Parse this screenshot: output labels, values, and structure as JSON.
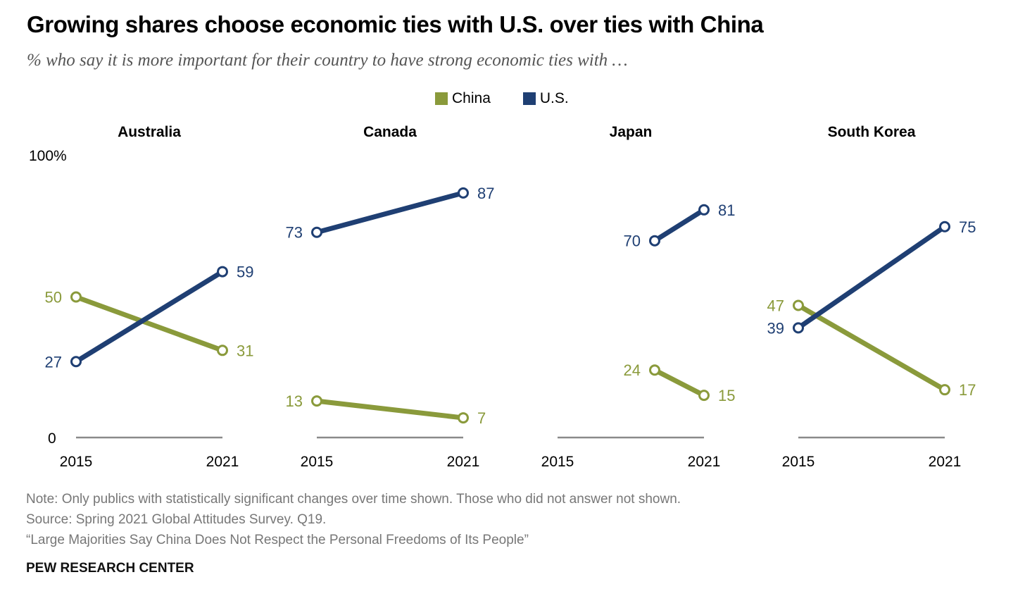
{
  "title": "Growing shares choose economic ties with U.S. over ties with China",
  "subtitle": "% who say it is more important for their country to have strong economic ties with …",
  "legend": [
    {
      "label": "China",
      "color": "#8a9a3b"
    },
    {
      "label": "U.S.",
      "color": "#1f3f73"
    }
  ],
  "colors": {
    "china": "#8a9a3b",
    "us": "#1f3f73",
    "baseline": "#8a8a8a"
  },
  "chart_data": {
    "type": "line",
    "ylim": [
      0,
      100
    ],
    "y_ticks": [
      "100%",
      "0"
    ],
    "legend_position": "top-center",
    "grid": false,
    "panels": [
      {
        "name": "Australia",
        "x_ticks": [
          "2015",
          "2021"
        ],
        "series": [
          {
            "name": "China",
            "values": [
              50,
              31
            ],
            "labels": [
              "50",
              "31"
            ]
          },
          {
            "name": "U.S.",
            "values": [
              27,
              59
            ],
            "labels": [
              "27",
              "59"
            ]
          }
        ]
      },
      {
        "name": "Canada",
        "x_ticks": [
          "2015",
          "2021"
        ],
        "series": [
          {
            "name": "China",
            "values": [
              13,
              7
            ],
            "labels": [
              "13",
              "7"
            ]
          },
          {
            "name": "U.S.",
            "values": [
              73,
              87
            ],
            "labels": [
              "73",
              "87"
            ]
          }
        ]
      },
      {
        "name": "Japan",
        "x_ticks": [
          "2015",
          "2021"
        ],
        "series": [
          {
            "name": "China",
            "values": [
              24,
              15
            ],
            "labels": [
              "24",
              "15"
            ]
          },
          {
            "name": "U.S.",
            "values": [
              70,
              81
            ],
            "labels": [
              "70",
              "81"
            ]
          }
        ]
      },
      {
        "name": "South Korea",
        "x_ticks": [
          "2015",
          "2021"
        ],
        "series": [
          {
            "name": "China",
            "values": [
              47,
              17
            ],
            "labels": [
              "47",
              "17"
            ]
          },
          {
            "name": "U.S.",
            "values": [
              39,
              75
            ],
            "labels": [
              "39",
              "75"
            ]
          }
        ]
      }
    ]
  },
  "footer": {
    "note": "Note: Only publics with statistically significant changes over time shown. Those who did not answer not shown.",
    "source": "Source: Spring 2021 Global Attitudes Survey. Q19.",
    "report": "“Large Majorities Say China Does Not Respect the Personal Freedoms of Its People”",
    "credit": "PEW RESEARCH CENTER"
  }
}
